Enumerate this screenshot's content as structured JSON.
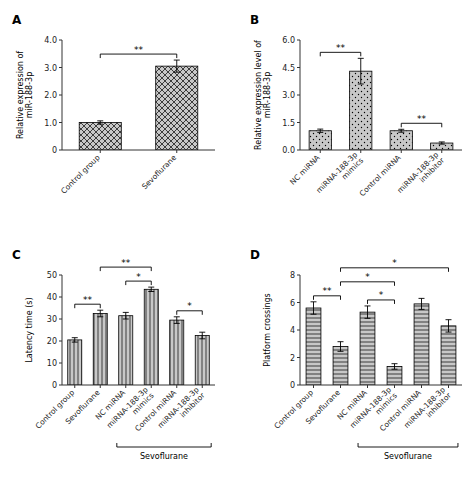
{
  "chart_data": [
    {
      "type": "bar",
      "title": "A",
      "categories": [
        "Control group",
        "Sevoflurane"
      ],
      "values": [
        1.0,
        3.05
      ],
      "errors": [
        0.06,
        0.22
      ],
      "color": "#c8c8c8",
      "ylabel": "Relative expression of\nmiR-188-3p",
      "ylim": [
        0,
        4.0
      ],
      "yticks": [
        0,
        {
          "value": 1.0,
          "label": "1.0"
        },
        {
          "value": 2.0,
          "label": "2.0"
        },
        {
          "value": 3.0,
          "label": "3.0"
        },
        {
          "value": 4.0,
          "label": "4.0"
        }
      ],
      "annotations": [
        {
          "text": "**",
          "from": "Control group",
          "to": "Sevoflurane"
        }
      ]
    },
    {
      "type": "bar",
      "title": "B",
      "categories": [
        "NC miRNA",
        "miRNA-188-3p\nmimics",
        "Control miRNA",
        "miRNA-188-3p\ninhibitor"
      ],
      "values": [
        1.05,
        4.3,
        1.05,
        0.38
      ],
      "errors": [
        0.09,
        0.7,
        0.08,
        0.06
      ],
      "color": "#c8c8c8",
      "ylabel": "Relative expression level of\nmiR-188-3p",
      "ylim": [
        0,
        6.0
      ],
      "yticks": [
        {
          "value": 0.0,
          "label": "0.0"
        },
        1.5,
        {
          "value": 3.0,
          "label": "3.0"
        },
        4.5,
        {
          "value": 6.0,
          "label": "6.0"
        }
      ],
      "annotations": [
        {
          "text": "**",
          "from": "NC miRNA",
          "to": "miRNA-188-3p\nmimics"
        },
        {
          "text": "**",
          "from": "Control miRNA",
          "to": "miRNA-188-3p\ninhibitor"
        }
      ]
    },
    {
      "type": "bar",
      "title": "C",
      "categories": [
        "Control group",
        "Sevoflurane",
        "NC miRNA",
        "miRNA-188-3p\nmimics",
        "Control miRNA",
        "miRNA-188-3p\ninhibitor"
      ],
      "values": [
        20.5,
        32.5,
        31.5,
        43.5,
        29.5,
        22.5
      ],
      "errors": [
        1.0,
        1.5,
        1.5,
        1.0,
        1.5,
        1.5
      ],
      "color": "#c8c8c8",
      "ylabel": "Latency time (s)",
      "ylim": [
        0,
        50
      ],
      "yticks": [
        0,
        10,
        20,
        30,
        40,
        50
      ],
      "annotations": [
        {
          "text": "**",
          "from": "Control group",
          "to": "Sevoflurane"
        },
        {
          "text": "*",
          "from": "NC miRNA",
          "to": "miRNA-188-3p\nmimics"
        },
        {
          "text": "**",
          "from": "Sevoflurane",
          "to": "miRNA-188-3p\nmimics"
        },
        {
          "text": "*",
          "from": "Control miRNA",
          "to": "miRNA-188-3p\ninhibitor"
        }
      ],
      "group": {
        "text": "Sevoflurane",
        "from": "NC miRNA",
        "to": "miRNA-188-3p\ninhibitor"
      }
    },
    {
      "type": "bar",
      "title": "D",
      "categories": [
        "Control group",
        "Sevoflurane",
        "NC miRNA",
        "miRNA-188-3p\nmimics",
        "Control miRNA",
        "miRNA-188-3p\ninhibitor"
      ],
      "values": [
        5.6,
        2.8,
        5.3,
        1.35,
        5.9,
        4.3
      ],
      "errors": [
        0.45,
        0.35,
        0.45,
        0.2,
        0.4,
        0.45
      ],
      "color": "#c8c8c8",
      "ylabel": "Platform crossings",
      "ylim": [
        0,
        8.0
      ],
      "yticks": [
        0,
        2,
        4,
        6,
        8
      ],
      "annotations": [
        {
          "text": "**",
          "from": "Control group",
          "to": "Sevoflurane"
        },
        {
          "text": "*",
          "from": "NC miRNA",
          "to": "miRNA-188-3p\nmimics"
        },
        {
          "text": "*",
          "from": "Sevoflurane",
          "to": "miRNA-188-3p\nmimics"
        },
        {
          "text": "*",
          "from": "Sevoflurane",
          "to": "miRNA-188-3p\ninhibitor"
        }
      ],
      "group": {
        "text": "Sevoflurane",
        "from": "NC miRNA",
        "to": "miRNA-188-3p\ninhibitor"
      }
    }
  ]
}
